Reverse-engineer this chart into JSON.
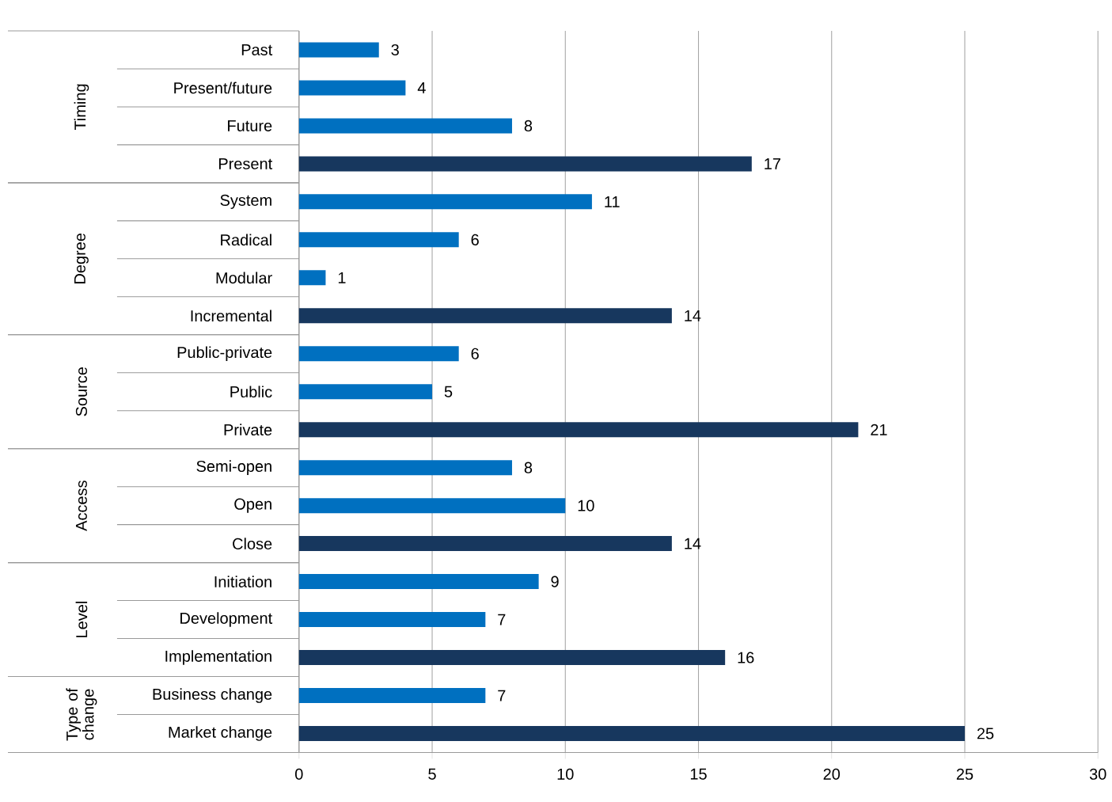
{
  "chart_data": {
    "type": "bar",
    "orientation": "horizontal",
    "categories": [
      "Past",
      "Present/future",
      "Future",
      "Present",
      "System",
      "Radical",
      "Modular",
      "Incremental",
      "Public-private",
      "Public",
      "Private",
      "Semi-open",
      "Open",
      "Close",
      "Initiation",
      "Development",
      "Implementation",
      "Business change",
      "Market change"
    ],
    "values": [
      3,
      4,
      8,
      17,
      11,
      6,
      1,
      14,
      6,
      5,
      21,
      8,
      10,
      14,
      9,
      7,
      16,
      7,
      25
    ],
    "colors": [
      "#0070c0",
      "#0070c0",
      "#0070c0",
      "#17375e",
      "#0070c0",
      "#0070c0",
      "#0070c0",
      "#17375e",
      "#0070c0",
      "#0070c0",
      "#17375e",
      "#0070c0",
      "#0070c0",
      "#17375e",
      "#0070c0",
      "#0070c0",
      "#17375e",
      "#0070c0",
      "#17375e"
    ],
    "annotations": [
      "Timing",
      "Degree",
      "Source",
      "Access",
      "Level",
      "Type of change"
    ],
    "xlim": [
      0,
      30
    ],
    "xticks": [
      0,
      5,
      10,
      15,
      20,
      25,
      30
    ],
    "grid": "x",
    "data_labels": true
  }
}
